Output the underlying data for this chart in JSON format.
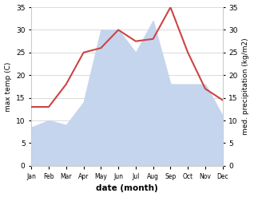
{
  "months": [
    "Jan",
    "Feb",
    "Mar",
    "Apr",
    "May",
    "Jun",
    "Jul",
    "Aug",
    "Sep",
    "Oct",
    "Nov",
    "Dec"
  ],
  "temp": [
    13.0,
    13.0,
    18.0,
    25.0,
    26.0,
    30.0,
    27.5,
    28.0,
    35.0,
    25.0,
    17.0,
    14.5
  ],
  "precip": [
    8.5,
    10.0,
    9.0,
    14.0,
    30.0,
    30.0,
    25.0,
    32.0,
    18.0,
    18.0,
    18.0,
    11.0
  ],
  "temp_ylim": [
    0,
    35
  ],
  "precip_ylim": [
    0,
    35
  ],
  "temp_color": "#cc4444",
  "precip_fill_color": "#c5d5ee",
  "xlabel": "date (month)",
  "ylabel_left": "max temp (C)",
  "ylabel_right": "med. precipitation (kg/m2)",
  "background_color": "#ffffff",
  "grid_color": "#cccccc",
  "yticks": [
    0,
    5,
    10,
    15,
    20,
    25,
    30,
    35
  ]
}
